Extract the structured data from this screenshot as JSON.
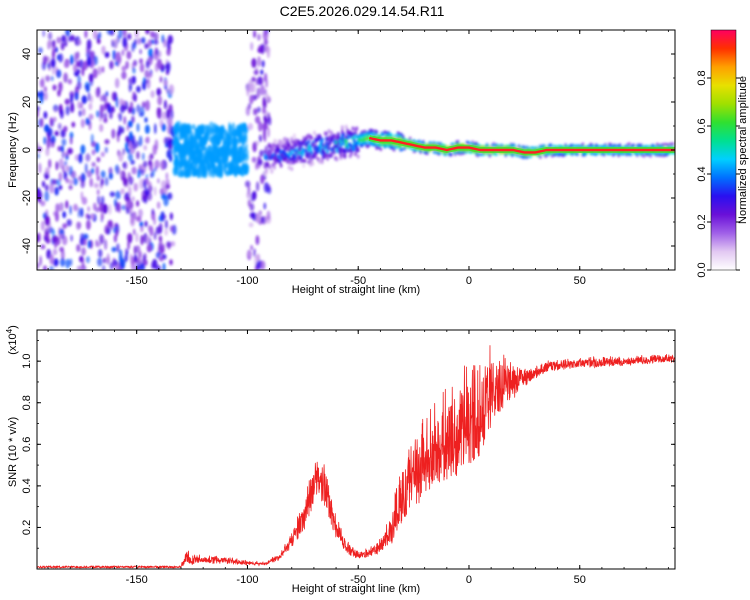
{
  "title": "C2E5.2026.029.14.54.R11",
  "chart_data": [
    {
      "type": "heatmap",
      "name": "spectrogram",
      "title": "C2E5.2026.029.14.54.R11",
      "xlabel": "Height of straight line (km)",
      "ylabel": "Frequency (Hz)",
      "xlim": [
        -195,
        93
      ],
      "ylim": [
        -50,
        50
      ],
      "xticks": [
        -150,
        -100,
        -50,
        0,
        50
      ],
      "yticks": [
        -40,
        -20,
        0,
        20,
        40
      ],
      "colorbar": {
        "label": "Normalized spectral amplitude",
        "range": [
          0,
          1
        ],
        "ticks": [
          0.0,
          0.2,
          0.4,
          0.6,
          0.8
        ],
        "stops": [
          "#ffffff",
          "#e2c8f2",
          "#a060e8",
          "#6a10d8",
          "#2a10f0",
          "#0070ff",
          "#00d0ff",
          "#00e090",
          "#30e030",
          "#a0e000",
          "#e8e000",
          "#ffa000",
          "#ff3000",
          "#ff0060"
        ]
      },
      "ridge": {
        "heights": [
          -90,
          -75,
          -60,
          -50,
          -45,
          -40,
          -35,
          -30,
          -25,
          -20,
          -15,
          -10,
          -5,
          0,
          5,
          10,
          15,
          20,
          25,
          30,
          35,
          40,
          50,
          60,
          70,
          80,
          93
        ],
        "frequencies": [
          -3,
          0,
          2,
          4,
          5,
          4,
          4,
          3,
          2,
          1,
          1,
          0,
          1,
          1,
          0,
          0,
          0,
          0,
          -1,
          -1,
          0,
          0,
          0,
          0,
          0,
          0,
          0
        ],
        "peak_amplitude": [
          0.4,
          0.5,
          0.55,
          0.6,
          0.7,
          0.8,
          0.85,
          0.9,
          0.9,
          0.92,
          0.95,
          0.95,
          0.95,
          0.95,
          0.95,
          0.95,
          0.95,
          0.95,
          0.95,
          0.9,
          0.85,
          0.8,
          0.8,
          0.75,
          0.75,
          0.75,
          0.75
        ]
      },
      "noise_regions": [
        {
          "from": -195,
          "to": -133,
          "freq_spread": 50,
          "amplitude": 0.3
        },
        {
          "from": -133,
          "to": -100,
          "freq_spread": 10,
          "amplitude": 0.35
        },
        {
          "from": -100,
          "to": -90,
          "freq_spread": 50,
          "amplitude": 0.25
        }
      ]
    },
    {
      "type": "line",
      "name": "snr",
      "xlabel": "Height of straight line (km)",
      "ylabel": "SNR (10 * v/v)",
      "y_multiplier": "(x10",
      "y_multiplier_exp": "4",
      "xlim": [
        -195,
        93
      ],
      "ylim": [
        0,
        1.15
      ],
      "xticks": [
        -150,
        -100,
        -50,
        0,
        50
      ],
      "yticks": [
        0.2,
        0.4,
        0.6,
        0.8,
        1.0
      ],
      "color": "#ee2020",
      "envelope": {
        "x": [
          -195,
          -130,
          -128,
          -120,
          -110,
          -100,
          -92,
          -85,
          -80,
          -75,
          -72,
          -68,
          -65,
          -63,
          -60,
          -57,
          -54,
          -50,
          -45,
          -40,
          -35,
          -30,
          -25,
          -20,
          -15,
          -10,
          -5,
          0,
          5,
          10,
          15,
          20,
          25,
          30,
          35,
          40,
          50,
          60,
          70,
          80,
          93
        ],
        "base": [
          0.01,
          0.01,
          0.02,
          0.03,
          0.03,
          0.02,
          0.02,
          0.05,
          0.1,
          0.18,
          0.25,
          0.35,
          0.3,
          0.22,
          0.15,
          0.1,
          0.07,
          0.05,
          0.06,
          0.08,
          0.12,
          0.22,
          0.28,
          0.35,
          0.4,
          0.42,
          0.45,
          0.5,
          0.55,
          0.65,
          0.75,
          0.82,
          0.88,
          0.92,
          0.95,
          0.96,
          0.97,
          0.97,
          0.98,
          0.99,
          1.0
        ],
        "spike": [
          0.01,
          0.01,
          0.1,
          0.06,
          0.06,
          0.04,
          0.03,
          0.08,
          0.18,
          0.32,
          0.45,
          0.55,
          0.5,
          0.4,
          0.25,
          0.18,
          0.12,
          0.08,
          0.1,
          0.15,
          0.28,
          0.55,
          0.6,
          0.75,
          0.8,
          0.9,
          0.95,
          1.0,
          1.0,
          1.12,
          1.05,
          1.0,
          0.98,
          0.98,
          1.0,
          1.0,
          1.02,
          1.02,
          1.02,
          1.03,
          1.04
        ]
      }
    }
  ]
}
